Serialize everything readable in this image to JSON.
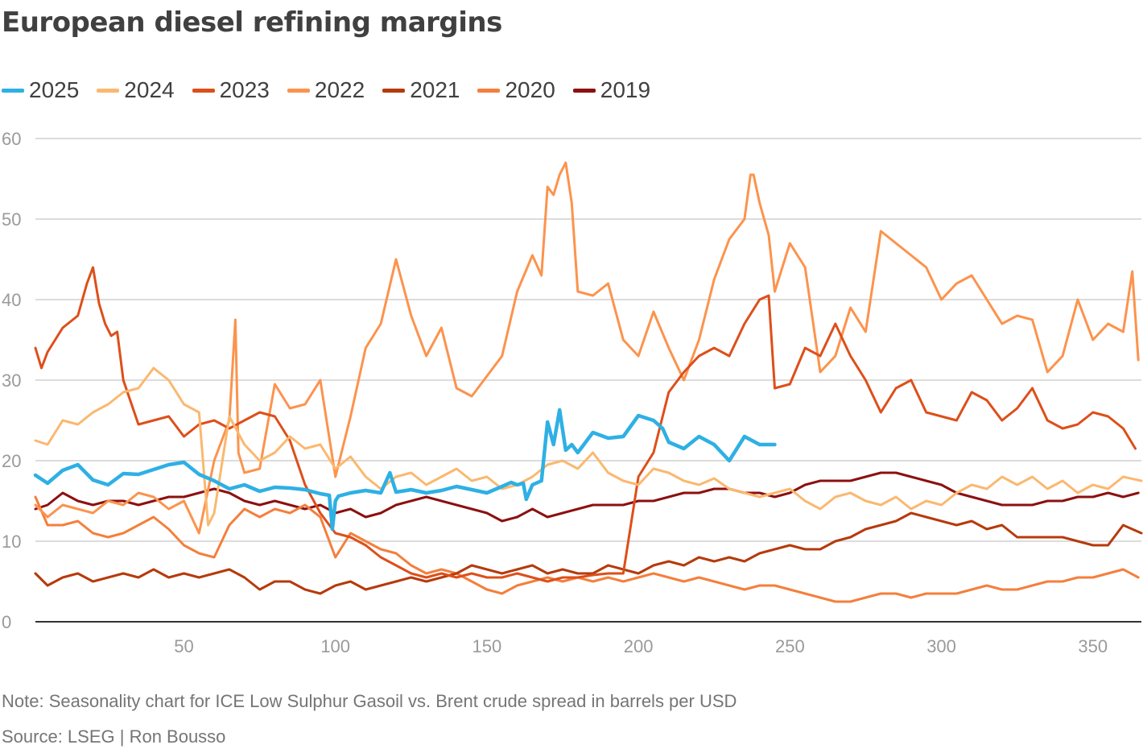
{
  "chart_data": {
    "type": "line",
    "title": "European diesel refining margins",
    "xlabel": "",
    "ylabel": "",
    "xlim": [
      1,
      366
    ],
    "ylim": [
      0,
      60
    ],
    "xticks": [
      50,
      100,
      150,
      200,
      250,
      300,
      350
    ],
    "yticks": [
      0,
      10,
      20,
      30,
      40,
      50,
      60
    ],
    "grid": "horizontal",
    "legend_position": "top-left",
    "note": "Note: Seasonality chart for ICE Low Sulphur Gasoil vs. Brent crude spread in barrels per USD",
    "source": "Source: LSEG | Ron Bousso",
    "series": [
      {
        "name": "2025",
        "color": "#2eb0e4",
        "width": 4.5,
        "x": [
          1,
          5,
          10,
          15,
          20,
          25,
          30,
          35,
          40,
          45,
          50,
          55,
          60,
          65,
          70,
          75,
          80,
          85,
          90,
          95,
          98,
          99,
          100,
          101,
          105,
          110,
          115,
          118,
          120,
          125,
          130,
          135,
          140,
          145,
          150,
          155,
          158,
          160,
          162,
          163,
          165,
          168,
          170,
          172,
          174,
          176,
          178,
          180,
          185,
          190,
          195,
          200,
          205,
          208,
          210,
          215,
          220,
          225,
          230,
          235,
          240,
          245
        ],
        "values": [
          18.2,
          17.2,
          18.8,
          19.5,
          17.6,
          17.0,
          18.4,
          18.3,
          18.9,
          19.5,
          19.8,
          18.3,
          17.5,
          16.5,
          17.0,
          16.2,
          16.7,
          16.6,
          16.4,
          15.9,
          15.7,
          11.5,
          15.0,
          15.6,
          16.0,
          16.3,
          16.0,
          18.5,
          16.1,
          16.4,
          16.0,
          16.3,
          16.8,
          16.4,
          16.0,
          16.8,
          17.3,
          17.0,
          17.2,
          15.2,
          17.0,
          17.5,
          24.8,
          22.0,
          26.3,
          21.3,
          22.0,
          21.0,
          23.5,
          22.8,
          23.0,
          25.6,
          25.0,
          24.0,
          22.3,
          21.5,
          23.0,
          22.0,
          20.0,
          23.0,
          22.0,
          22.0
        ]
      },
      {
        "name": "2024",
        "color": "#fbb86f",
        "width": 3,
        "x": [
          1,
          5,
          10,
          15,
          20,
          25,
          30,
          35,
          40,
          45,
          50,
          55,
          58,
          60,
          65,
          70,
          75,
          80,
          85,
          90,
          95,
          100,
          105,
          110,
          115,
          120,
          125,
          130,
          135,
          140,
          145,
          150,
          155,
          160,
          165,
          170,
          175,
          180,
          185,
          190,
          195,
          200,
          205,
          210,
          215,
          220,
          225,
          230,
          235,
          240,
          245,
          250,
          255,
          260,
          265,
          270,
          275,
          280,
          285,
          290,
          295,
          300,
          305,
          310,
          315,
          320,
          325,
          330,
          335,
          340,
          345,
          350,
          355,
          360,
          366
        ],
        "values": [
          22.5,
          22.0,
          25.0,
          24.5,
          26.0,
          27.0,
          28.5,
          29.0,
          31.5,
          30.0,
          27.0,
          26.0,
          12.0,
          13.5,
          25.5,
          22.0,
          20.0,
          21.0,
          23.0,
          21.5,
          22.0,
          19.0,
          20.5,
          18.0,
          16.5,
          18.0,
          18.5,
          17.0,
          18.0,
          19.0,
          17.5,
          18.0,
          16.5,
          17.0,
          18.0,
          19.5,
          20.0,
          19.0,
          21.0,
          18.5,
          17.5,
          17.0,
          19.0,
          18.5,
          17.5,
          17.0,
          17.8,
          16.5,
          16.0,
          15.5,
          16.0,
          16.5,
          15.0,
          14.0,
          15.5,
          16.0,
          15.0,
          14.5,
          15.5,
          14.0,
          15.0,
          14.5,
          16.0,
          17.0,
          16.5,
          18.0,
          17.0,
          18.0,
          16.5,
          17.5,
          16.0,
          17.0,
          16.5,
          18.0,
          17.5
        ]
      },
      {
        "name": "2023",
        "color": "#dd4f1a",
        "width": 3,
        "x": [
          1,
          3,
          5,
          10,
          15,
          18,
          20,
          22,
          24,
          26,
          28,
          30,
          35,
          40,
          45,
          50,
          55,
          60,
          65,
          70,
          75,
          80,
          85,
          90,
          95,
          100,
          105,
          110,
          115,
          120,
          125,
          130,
          135,
          140,
          145,
          150,
          155,
          160,
          165,
          170,
          175,
          180,
          185,
          190,
          195,
          200,
          205,
          210,
          215,
          220,
          225,
          230,
          235,
          240,
          243,
          245,
          250,
          255,
          260,
          265,
          270,
          275,
          280,
          285,
          290,
          295,
          300,
          305,
          310,
          315,
          320,
          325,
          330,
          335,
          340,
          345,
          350,
          355,
          360,
          364
        ],
        "values": [
          34.0,
          31.5,
          33.5,
          36.5,
          38.0,
          42.0,
          44.0,
          39.5,
          37.0,
          35.5,
          36.0,
          30.0,
          24.5,
          25.0,
          25.5,
          23.0,
          24.5,
          25.0,
          24.0,
          25.0,
          26.0,
          25.5,
          22.5,
          17.0,
          13.5,
          11.0,
          10.5,
          9.5,
          8.0,
          7.0,
          6.0,
          5.5,
          6.0,
          5.5,
          6.0,
          5.5,
          5.5,
          6.0,
          5.5,
          5.0,
          5.5,
          5.5,
          5.8,
          6.0,
          6.0,
          18.0,
          21.0,
          28.5,
          31.0,
          33.0,
          34.0,
          33.0,
          37.0,
          40.0,
          40.5,
          29.0,
          29.5,
          34.0,
          33.0,
          37.0,
          33.0,
          30.0,
          26.0,
          29.0,
          30.0,
          26.0,
          25.5,
          25.0,
          28.5,
          27.5,
          25.0,
          26.5,
          29.0,
          25.0,
          24.0,
          24.5,
          26.0,
          25.5,
          24.0,
          21.5
        ]
      },
      {
        "name": "2022",
        "color": "#fc934d",
        "width": 3,
        "x": [
          1,
          5,
          10,
          15,
          20,
          25,
          30,
          35,
          40,
          45,
          50,
          55,
          60,
          65,
          67,
          68,
          70,
          75,
          80,
          85,
          90,
          95,
          100,
          105,
          110,
          115,
          120,
          125,
          130,
          135,
          140,
          145,
          150,
          155,
          160,
          165,
          168,
          170,
          172,
          174,
          176,
          178,
          180,
          185,
          190,
          195,
          200,
          205,
          210,
          215,
          220,
          225,
          230,
          235,
          237,
          238,
          240,
          243,
          245,
          250,
          255,
          260,
          265,
          270,
          275,
          280,
          285,
          290,
          295,
          300,
          305,
          310,
          315,
          320,
          325,
          330,
          335,
          340,
          345,
          350,
          355,
          360,
          363,
          365
        ],
        "values": [
          14.5,
          13.0,
          14.5,
          14.0,
          13.5,
          15.0,
          14.5,
          16.0,
          15.5,
          14.0,
          15.0,
          11.0,
          20.0,
          25.0,
          37.5,
          21.0,
          18.5,
          19.0,
          29.5,
          26.5,
          27.0,
          30.0,
          18.0,
          25.5,
          34.0,
          37.0,
          45.0,
          38.0,
          33.0,
          36.5,
          29.0,
          28.0,
          30.5,
          33.0,
          41.0,
          45.5,
          43.0,
          54.0,
          53.0,
          55.5,
          57.0,
          52.0,
          41.0,
          40.5,
          42.0,
          35.0,
          33.0,
          38.5,
          34.0,
          30.0,
          35.0,
          42.5,
          47.5,
          50.0,
          55.5,
          55.5,
          52.0,
          48.0,
          41.0,
          47.0,
          44.0,
          31.0,
          33.0,
          39.0,
          36.0,
          48.5,
          47.0,
          45.5,
          44.0,
          40.0,
          42.0,
          43.0,
          40.0,
          37.0,
          38.0,
          37.5,
          31.0,
          33.0,
          40.0,
          35.0,
          37.0,
          36.0,
          43.5,
          32.5
        ]
      },
      {
        "name": "2021",
        "color": "#b63a0c",
        "width": 3,
        "x": [
          1,
          5,
          10,
          15,
          20,
          25,
          30,
          35,
          40,
          45,
          50,
          55,
          60,
          65,
          70,
          75,
          80,
          85,
          90,
          95,
          100,
          105,
          110,
          115,
          120,
          125,
          130,
          135,
          140,
          145,
          150,
          155,
          160,
          165,
          170,
          175,
          180,
          185,
          190,
          195,
          200,
          205,
          210,
          215,
          220,
          225,
          230,
          235,
          240,
          245,
          250,
          255,
          260,
          265,
          270,
          275,
          280,
          285,
          290,
          295,
          300,
          305,
          310,
          315,
          320,
          325,
          330,
          335,
          340,
          345,
          350,
          355,
          360,
          366
        ],
        "values": [
          6.0,
          4.5,
          5.5,
          6.0,
          5.0,
          5.5,
          6.0,
          5.5,
          6.5,
          5.5,
          6.0,
          5.5,
          6.0,
          6.5,
          5.5,
          4.0,
          5.0,
          5.0,
          4.0,
          3.5,
          4.5,
          5.0,
          4.0,
          4.5,
          5.0,
          5.5,
          5.0,
          5.5,
          6.0,
          7.0,
          6.5,
          6.0,
          6.5,
          7.0,
          6.0,
          6.5,
          6.0,
          6.0,
          7.0,
          6.5,
          6.0,
          7.0,
          7.5,
          7.0,
          8.0,
          7.5,
          8.0,
          7.5,
          8.5,
          9.0,
          9.5,
          9.0,
          9.0,
          10.0,
          10.5,
          11.5,
          12.0,
          12.5,
          13.5,
          13.0,
          12.5,
          12.0,
          12.5,
          11.5,
          12.0,
          10.5,
          10.5,
          10.5,
          10.5,
          10.0,
          9.5,
          9.5,
          12.0,
          11.0
        ]
      },
      {
        "name": "2020",
        "color": "#f47f3c",
        "width": 3,
        "x": [
          1,
          5,
          10,
          15,
          20,
          25,
          30,
          35,
          40,
          45,
          50,
          55,
          60,
          65,
          70,
          75,
          80,
          85,
          90,
          95,
          100,
          105,
          110,
          115,
          120,
          125,
          130,
          135,
          140,
          145,
          150,
          155,
          160,
          165,
          170,
          175,
          180,
          185,
          190,
          195,
          200,
          205,
          210,
          215,
          220,
          225,
          230,
          235,
          240,
          245,
          250,
          255,
          260,
          265,
          270,
          275,
          280,
          285,
          290,
          295,
          300,
          305,
          310,
          315,
          320,
          325,
          330,
          335,
          340,
          345,
          350,
          355,
          360,
          365
        ],
        "values": [
          15.5,
          12.0,
          12.0,
          12.5,
          11.0,
          10.5,
          11.0,
          12.0,
          13.0,
          11.5,
          9.5,
          8.5,
          8.0,
          12.0,
          14.0,
          13.0,
          14.0,
          13.5,
          14.5,
          13.0,
          8.0,
          11.0,
          10.0,
          9.0,
          8.5,
          7.0,
          6.0,
          6.5,
          6.0,
          5.0,
          4.0,
          3.5,
          4.5,
          5.0,
          5.5,
          5.0,
          5.5,
          5.0,
          5.5,
          5.0,
          5.5,
          6.0,
          5.5,
          5.0,
          5.5,
          5.0,
          4.5,
          4.0,
          4.5,
          4.5,
          4.0,
          3.5,
          3.0,
          2.5,
          2.5,
          3.0,
          3.5,
          3.5,
          3.0,
          3.5,
          3.5,
          3.5,
          4.0,
          4.5,
          4.0,
          4.0,
          4.5,
          5.0,
          5.0,
          5.5,
          5.5,
          6.0,
          6.5,
          5.5
        ]
      },
      {
        "name": "2019",
        "color": "#8c1010",
        "width": 3,
        "x": [
          1,
          5,
          10,
          15,
          20,
          25,
          30,
          35,
          40,
          45,
          50,
          55,
          60,
          65,
          70,
          75,
          80,
          85,
          90,
          95,
          100,
          105,
          110,
          115,
          120,
          125,
          130,
          135,
          140,
          145,
          150,
          155,
          160,
          165,
          170,
          175,
          180,
          185,
          190,
          195,
          200,
          205,
          210,
          215,
          220,
          225,
          230,
          235,
          240,
          245,
          250,
          255,
          260,
          265,
          270,
          275,
          280,
          285,
          290,
          295,
          300,
          305,
          310,
          315,
          320,
          325,
          330,
          335,
          340,
          345,
          350,
          355,
          360,
          365
        ],
        "values": [
          14.0,
          14.5,
          16.0,
          15.0,
          14.5,
          15.0,
          15.0,
          14.5,
          15.0,
          15.5,
          15.5,
          16.0,
          16.5,
          16.0,
          15.0,
          14.5,
          15.0,
          14.5,
          14.0,
          14.5,
          13.5,
          14.0,
          13.0,
          13.5,
          14.5,
          15.0,
          15.5,
          15.0,
          14.5,
          14.0,
          13.5,
          12.5,
          13.0,
          14.0,
          13.0,
          13.5,
          14.0,
          14.5,
          14.5,
          14.5,
          15.0,
          15.0,
          15.5,
          16.0,
          16.0,
          16.5,
          16.5,
          16.0,
          16.0,
          15.5,
          16.0,
          17.0,
          17.5,
          17.5,
          17.5,
          18.0,
          18.5,
          18.5,
          18.0,
          17.5,
          17.0,
          16.0,
          15.5,
          15.0,
          14.5,
          14.5,
          14.5,
          15.0,
          15.0,
          15.5,
          15.5,
          16.0,
          15.5,
          16.0
        ]
      }
    ]
  }
}
